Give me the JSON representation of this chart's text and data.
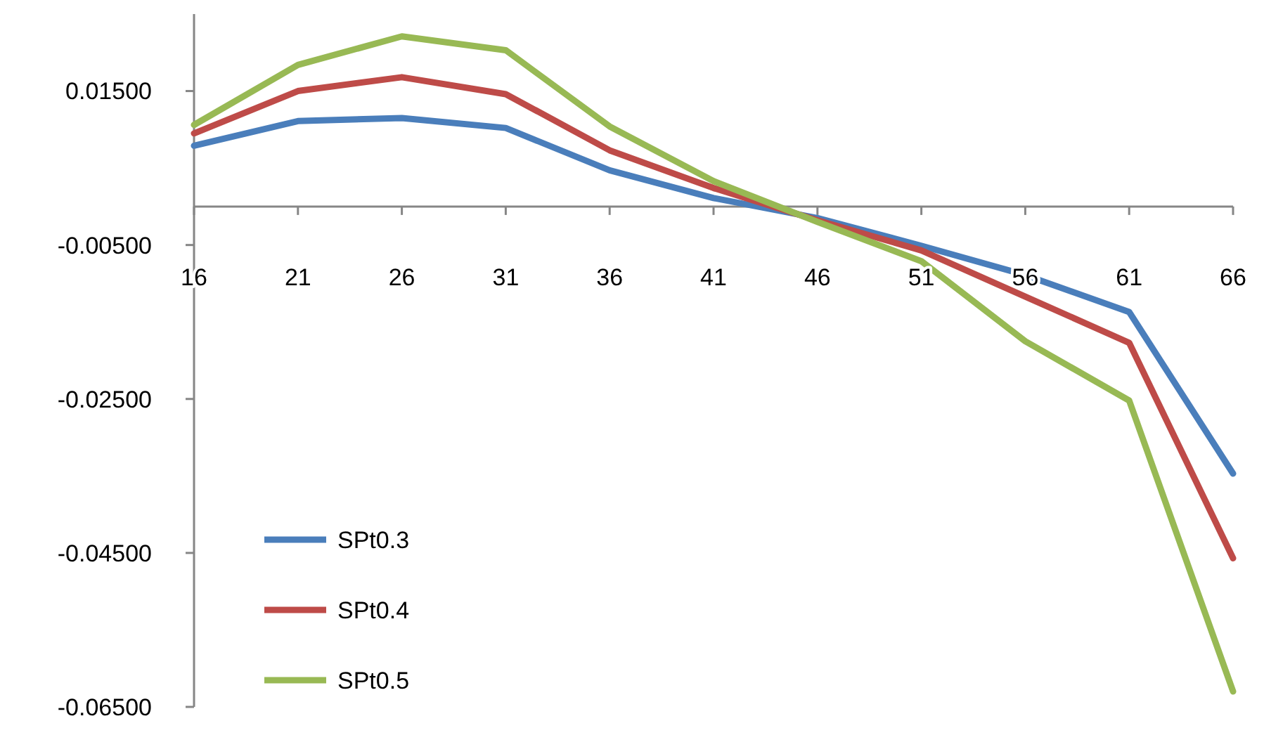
{
  "chart_data": {
    "type": "line",
    "categories": [
      "16",
      "21",
      "26",
      "31",
      "36",
      "41",
      "46",
      "51",
      "56",
      "61",
      "66"
    ],
    "series": [
      {
        "name": "SPt0.3",
        "color": "#4a7ebb",
        "values": [
          0.0079,
          0.0111,
          0.0115,
          0.0102,
          0.0047,
          0.0011,
          -0.0015,
          -0.0051,
          -0.0089,
          -0.0137,
          -0.0347
        ]
      },
      {
        "name": "SPt0.4",
        "color": "#be4b48",
        "values": [
          0.0095,
          0.015,
          0.0168,
          0.0146,
          0.0073,
          0.0024,
          -0.0018,
          -0.0057,
          -0.0117,
          -0.0177,
          -0.0457
        ]
      },
      {
        "name": "SPt0.5",
        "color": "#98b954",
        "values": [
          0.0106,
          0.0184,
          0.0221,
          0.0203,
          0.0104,
          0.0033,
          -0.002,
          -0.0071,
          -0.0175,
          -0.0252,
          -0.063
        ]
      }
    ],
    "ylim": [
      -0.065,
      0.025
    ],
    "yticks": [
      {
        "value": 0.015,
        "label": "0.01500"
      },
      {
        "value": -0.005,
        "label": "-0.00500"
      },
      {
        "value": -0.025,
        "label": "-0.02500"
      },
      {
        "value": -0.045,
        "label": "-0.04500"
      },
      {
        "value": -0.065,
        "label": "-0.06500"
      }
    ],
    "legend": "bottom left",
    "grid": false,
    "marker": "none",
    "line_style": "solid"
  }
}
